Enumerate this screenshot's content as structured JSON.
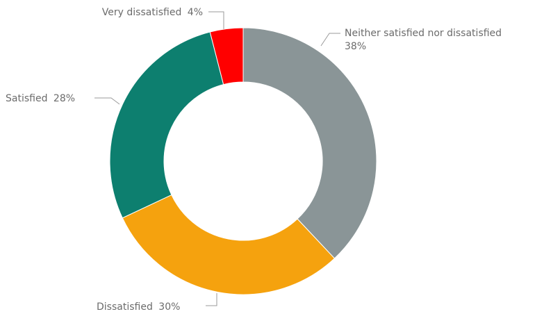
{
  "chart_data": {
    "type": "pie",
    "donut": true,
    "title": "",
    "unit": "%",
    "start_angle_deg": 0,
    "direction": "clockwise",
    "slices": [
      {
        "label": "Neither satisfied nor dissatisfied",
        "value": 38,
        "display": "38%",
        "color": "#8a9597"
      },
      {
        "label": "Dissatisfied",
        "value": 30,
        "display": "30%",
        "color": "#f5a20e"
      },
      {
        "label": "Satisfied",
        "value": 28,
        "display": "28%",
        "color": "#0d7f6f"
      },
      {
        "label": "Very dissatisfied",
        "value": 4,
        "display": "4%",
        "color": "#ff0000"
      }
    ]
  }
}
